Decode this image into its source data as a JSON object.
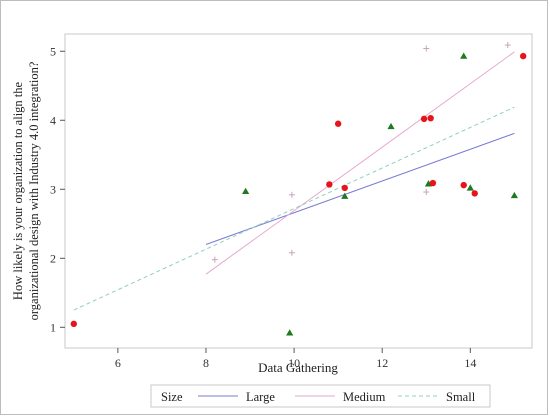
{
  "chart_data": {
    "type": "scatter",
    "title": "",
    "xlabel": "Data Gathering",
    "ylabel_line1": "How likely is your organization to align the",
    "ylabel_line2": "organizational design with Industry 4.0 integration?",
    "xlim": [
      4.8,
      15.4
    ],
    "ylim": [
      0.7,
      5.25
    ],
    "xticks": [
      6,
      8,
      10,
      12,
      14
    ],
    "yticks": [
      1,
      2,
      3,
      4,
      5
    ],
    "grid": false,
    "legend": {
      "title": "Size",
      "placement": "bottom",
      "entries": [
        "Large",
        "Medium",
        "Small"
      ]
    },
    "series": [
      {
        "name": "Large",
        "marker": "triangle",
        "color": "#1f7a1f",
        "points": [
          {
            "x": 8.9,
            "y": 2.97
          },
          {
            "x": 9.9,
            "y": 0.92
          },
          {
            "x": 11.15,
            "y": 2.9
          },
          {
            "x": 12.2,
            "y": 3.91
          },
          {
            "x": 13.05,
            "y": 3.08
          },
          {
            "x": 13.85,
            "y": 4.93
          },
          {
            "x": 14.0,
            "y": 3.02
          },
          {
            "x": 15.0,
            "y": 2.91
          }
        ],
        "fit": {
          "x1": 8.0,
          "y1": 2.2,
          "x2": 15.0,
          "y2": 3.81,
          "color": "#7b7bd6",
          "dash": "solid"
        }
      },
      {
        "name": "Medium",
        "marker": "plus",
        "color": "#c9a3bb",
        "points": [
          {
            "x": 8.2,
            "y": 1.98
          },
          {
            "x": 9.95,
            "y": 2.92
          },
          {
            "x": 9.95,
            "y": 2.08
          },
          {
            "x": 13.0,
            "y": 5.04
          },
          {
            "x": 13.0,
            "y": 2.96
          },
          {
            "x": 14.85,
            "y": 5.09
          }
        ],
        "fit": {
          "x1": 8.0,
          "y1": 1.77,
          "x2": 15.0,
          "y2": 4.99,
          "color": "#e5a9cf",
          "dash": "solid"
        }
      },
      {
        "name": "",
        "marker": "circle",
        "color": "#e8141b",
        "points": [
          {
            "x": 5.0,
            "y": 1.05
          },
          {
            "x": 10.8,
            "y": 3.07
          },
          {
            "x": 11.0,
            "y": 3.95
          },
          {
            "x": 11.15,
            "y": 3.02
          },
          {
            "x": 12.95,
            "y": 4.02
          },
          {
            "x": 13.1,
            "y": 4.03
          },
          {
            "x": 13.15,
            "y": 3.09
          },
          {
            "x": 13.85,
            "y": 3.06
          },
          {
            "x": 14.1,
            "y": 2.94
          },
          {
            "x": 15.2,
            "y": 4.93
          }
        ]
      },
      {
        "name": "Small",
        "marker": "none",
        "color": "#8fd0bf",
        "fit": {
          "x1": 5.0,
          "y1": 1.25,
          "x2": 15.0,
          "y2": 4.19,
          "color": "#8fd0bf",
          "dash": "dashed"
        }
      }
    ]
  }
}
